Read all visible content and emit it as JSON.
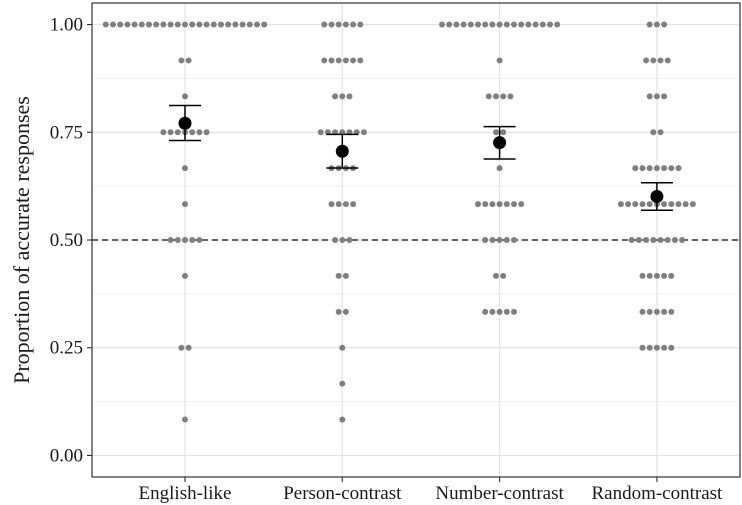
{
  "chart_data": {
    "type": "scatter",
    "title": "",
    "xlabel": "",
    "ylabel": "Proportion of accurate responses",
    "categories": [
      "English-like",
      "Person-contrast",
      "Number-contrast",
      "Random-contrast"
    ],
    "ylim": [
      -0.05,
      1.05
    ],
    "yticks": [
      0.0,
      0.25,
      0.5,
      0.75,
      1.0
    ],
    "ytick_labels": [
      "0.00",
      "0.25",
      "0.50",
      "0.75",
      "1.00"
    ],
    "grid": true,
    "reference_line": {
      "y": 0.5,
      "style": "dashed"
    },
    "colors": {
      "points": "#7f7f7f",
      "mean": "#000000",
      "grid": "#e3e3e3",
      "reference": "#333333"
    },
    "participants": [
      {
        "category": "English-like",
        "values": [
          1,
          1,
          1,
          1,
          1,
          1,
          1,
          1,
          1,
          1,
          1,
          1,
          1,
          1,
          1,
          1,
          1,
          1,
          1,
          1,
          1,
          1,
          1,
          0.9167,
          0.9167,
          0.8333,
          0.75,
          0.75,
          0.75,
          0.75,
          0.75,
          0.75,
          0.75,
          0.6667,
          0.5833,
          0.5,
          0.5,
          0.5,
          0.5,
          0.5,
          0.4167,
          0.25,
          0.25,
          0.0833
        ]
      },
      {
        "category": "Person-contrast",
        "values": [
          1,
          1,
          1,
          1,
          1,
          1,
          0.9167,
          0.9167,
          0.9167,
          0.9167,
          0.9167,
          0.9167,
          0.8333,
          0.8333,
          0.8333,
          0.75,
          0.75,
          0.75,
          0.75,
          0.75,
          0.75,
          0.75,
          0.6667,
          0.6667,
          0.6667,
          0.6667,
          0.5833,
          0.5833,
          0.5833,
          0.5833,
          0.5,
          0.5,
          0.5,
          0.4167,
          0.4167,
          0.3333,
          0.3333,
          0.25,
          0.1667,
          0.0833
        ]
      },
      {
        "category": "Number-contrast",
        "values": [
          1,
          1,
          1,
          1,
          1,
          1,
          1,
          1,
          1,
          1,
          1,
          1,
          1,
          1,
          1,
          1,
          1,
          0.9167,
          0.8333,
          0.8333,
          0.8333,
          0.8333,
          0.75,
          0.75,
          0.6667,
          0.5833,
          0.5833,
          0.5833,
          0.5833,
          0.5833,
          0.5833,
          0.5833,
          0.5,
          0.5,
          0.5,
          0.5,
          0.5,
          0.4167,
          0.4167,
          0.3333,
          0.3333,
          0.3333,
          0.3333,
          0.3333
        ]
      },
      {
        "category": "Random-contrast",
        "values": [
          1,
          1,
          1,
          0.9167,
          0.9167,
          0.9167,
          0.9167,
          0.8333,
          0.8333,
          0.8333,
          0.75,
          0.75,
          0.6667,
          0.6667,
          0.6667,
          0.6667,
          0.6667,
          0.6667,
          0.6667,
          0.5833,
          0.5833,
          0.5833,
          0.5833,
          0.5833,
          0.5833,
          0.5833,
          0.5833,
          0.5833,
          0.5833,
          0.5833,
          0.5,
          0.5,
          0.5,
          0.5,
          0.5,
          0.5,
          0.5,
          0.5,
          0.4167,
          0.4167,
          0.4167,
          0.4167,
          0.4167,
          0.3333,
          0.3333,
          0.3333,
          0.3333,
          0.3333,
          0.25,
          0.25,
          0.25,
          0.25,
          0.25
        ]
      }
    ],
    "means": [
      {
        "category": "English-like",
        "mean": 0.771,
        "ci_low": 0.731,
        "ci_high": 0.812
      },
      {
        "category": "Person-contrast",
        "mean": 0.706,
        "ci_low": 0.667,
        "ci_high": 0.745
      },
      {
        "category": "Number-contrast",
        "mean": 0.726,
        "ci_low": 0.688,
        "ci_high": 0.763
      },
      {
        "category": "Random-contrast",
        "mean": 0.601,
        "ci_low": 0.569,
        "ci_high": 0.633
      }
    ]
  }
}
